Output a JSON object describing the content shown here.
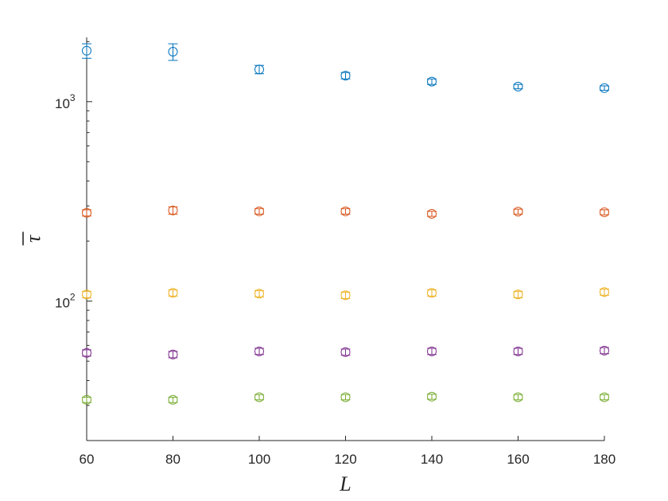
{
  "chart_data": {
    "type": "scatter",
    "xlabel": "L",
    "ylabel": "τ",
    "ylabel_overbar": true,
    "yscale": "log",
    "xlim": [
      60,
      180
    ],
    "ylim": [
      20,
      2100
    ],
    "xticks": [
      60,
      80,
      100,
      120,
      140,
      160,
      180
    ],
    "yticks": [
      {
        "value": 100,
        "base": "10",
        "exp": "2"
      },
      {
        "value": 1000,
        "base": "10",
        "exp": "3"
      }
    ],
    "grid": false,
    "marker": "circle",
    "error_bars": true,
    "x": [
      60,
      80,
      100,
      120,
      140,
      160,
      180
    ],
    "series": [
      {
        "color": "#0072BD",
        "values": [
          1800,
          1780,
          1450,
          1350,
          1260,
          1190,
          1170
        ],
        "errors": [
          150,
          170,
          70,
          50,
          40,
          30,
          30
        ]
      },
      {
        "color": "#D95319",
        "values": [
          277,
          285,
          282,
          282,
          274,
          281,
          279
        ],
        "errors": [
          10,
          12,
          9,
          9,
          8,
          8,
          8
        ]
      },
      {
        "color": "#EDB120",
        "values": [
          108,
          110,
          109,
          107,
          110,
          108,
          111
        ],
        "errors": [
          4,
          4,
          4,
          4,
          4,
          4,
          4
        ]
      },
      {
        "color": "#7E2F8E",
        "values": [
          55,
          54,
          56,
          55.5,
          56,
          56,
          56.5
        ],
        "errors": [
          2,
          2,
          2,
          2,
          2,
          2,
          2
        ]
      },
      {
        "color": "#77AC30",
        "values": [
          32,
          32,
          33,
          33,
          33.2,
          33,
          33
        ],
        "errors": [
          1,
          1,
          1,
          1,
          1,
          1,
          1
        ]
      }
    ]
  }
}
